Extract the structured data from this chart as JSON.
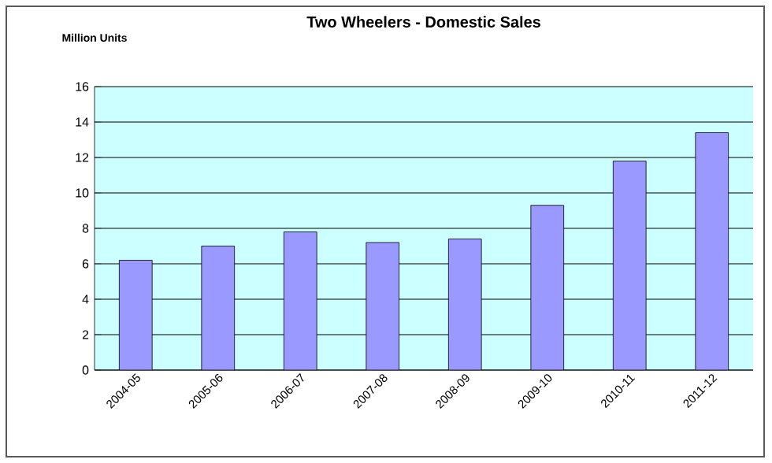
{
  "chart_data": {
    "type": "bar",
    "title": "Two Wheelers - Domestic Sales",
    "ylabel": "Million Units",
    "categories": [
      "2004-05",
      "2005-06",
      "2006-07",
      "2007-08",
      "2008-09",
      "2009-10",
      "2010-11",
      "2011-12"
    ],
    "values": [
      6.2,
      7.0,
      7.8,
      7.2,
      7.4,
      9.3,
      11.8,
      13.4
    ],
    "color": "#9999ff",
    "ylim": [
      0,
      16
    ],
    "yticks": [
      0,
      2,
      4,
      6,
      8,
      10,
      12,
      14,
      16
    ],
    "grid": "y"
  }
}
